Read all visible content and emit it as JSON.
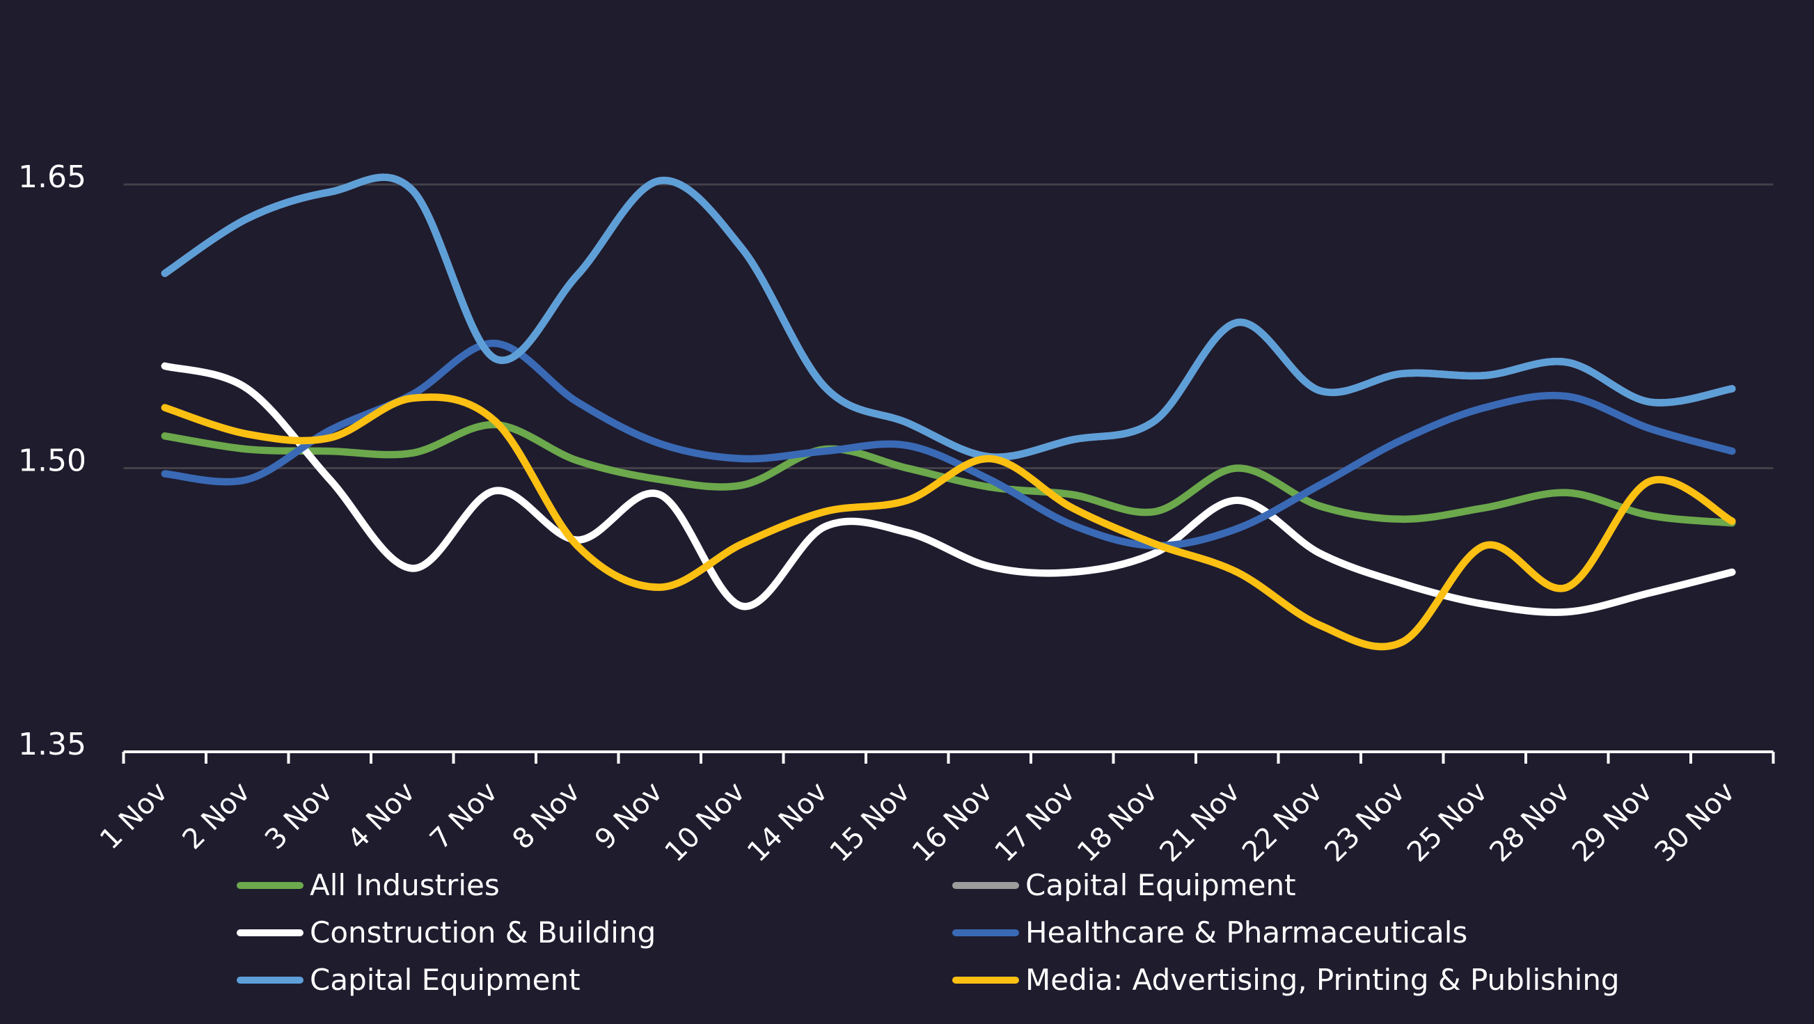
{
  "chart_data": {
    "type": "line",
    "title": "",
    "categories": [
      "1 Nov",
      "2 Nov",
      "3 Nov",
      "4 Nov",
      "7 Nov",
      "8 Nov",
      "9 Nov",
      "10 Nov",
      "14 Nov",
      "15 Nov",
      "16 Nov",
      "17 Nov",
      "18 Nov",
      "21 Nov",
      "22 Nov",
      "23 Nov",
      "25 Nov",
      "28 Nov",
      "29 Nov",
      "30 Nov"
    ],
    "series": [
      {
        "name": "All Industries",
        "color": "#6ca84c",
        "values": [
          1.517,
          1.51,
          1.509,
          1.508,
          1.523,
          1.504,
          1.494,
          1.491,
          1.51,
          1.5,
          1.49,
          1.486,
          1.477,
          1.5,
          1.48,
          1.473,
          1.479,
          1.487,
          1.475,
          1.471
        ]
      },
      {
        "name": "Capital Equipment",
        "color": "#9c9c9c",
        "values": [
          1.603,
          1.632,
          1.646,
          1.647,
          1.558,
          1.602,
          1.652,
          1.616,
          1.543,
          1.524,
          1.506,
          1.515,
          1.525,
          1.577,
          1.541,
          1.55,
          1.549,
          1.556,
          1.535,
          1.542
        ]
      },
      {
        "name": "Construction & Building",
        "color": "#ffffff",
        "values": [
          1.554,
          1.542,
          1.494,
          1.447,
          1.488,
          1.462,
          1.486,
          1.427,
          1.469,
          1.466,
          1.448,
          1.445,
          1.455,
          1.483,
          1.455,
          1.439,
          1.428,
          1.424,
          1.434,
          1.445
        ]
      },
      {
        "name": "Healthcare & Pharmaceuticals",
        "color": "#3a6ab5",
        "values": [
          1.497,
          1.494,
          1.52,
          1.539,
          1.566,
          1.535,
          1.513,
          1.505,
          1.509,
          1.512,
          1.494,
          1.47,
          1.459,
          1.468,
          1.491,
          1.515,
          1.532,
          1.538,
          1.521,
          1.509
        ]
      },
      {
        "name": "Capital Equipment",
        "color": "#5f9fd8",
        "values": [
          1.603,
          1.632,
          1.646,
          1.647,
          1.558,
          1.602,
          1.652,
          1.616,
          1.543,
          1.524,
          1.506,
          1.515,
          1.525,
          1.577,
          1.541,
          1.55,
          1.549,
          1.556,
          1.535,
          1.542
        ]
      },
      {
        "name": "Media: Advertising, Printing & Publishing",
        "color": "#fcc013",
        "values": [
          1.532,
          1.518,
          1.516,
          1.537,
          1.525,
          1.459,
          1.437,
          1.46,
          1.477,
          1.483,
          1.505,
          1.479,
          1.46,
          1.445,
          1.417,
          1.408,
          1.459,
          1.437,
          1.493,
          1.472
        ]
      }
    ],
    "ylabel": "",
    "xlabel": "",
    "ylim": [
      1.35,
      1.68
    ],
    "y_axis": {
      "tick_labels": [
        "1.65",
        "1.50",
        "1.35"
      ],
      "tick_values": [
        1.65,
        1.5,
        1.35
      ],
      "gridlines_at": [
        1.65,
        1.5
      ]
    },
    "x_axis": {
      "label_rotation_deg": -45,
      "tick_count": 21
    },
    "legend_position": "bottom",
    "legend_columns": [
      [
        0,
        2,
        4
      ],
      [
        1,
        3,
        5
      ]
    ],
    "colors": {
      "background": "#1f1c2e",
      "gridline": "#434049",
      "axis": "#ffffff",
      "text": "#ffffff"
    }
  }
}
